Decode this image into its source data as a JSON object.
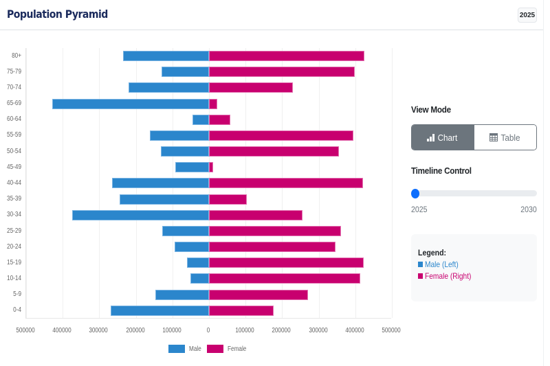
{
  "header": {
    "title": "Population Pyramid",
    "year_badge": "2025"
  },
  "side_panel": {
    "view_mode": {
      "title": "View Mode",
      "chart_label": "Chart",
      "chart_icon": "bar-chart-icon",
      "table_label": "Table",
      "table_icon": "table-icon",
      "active": "Chart"
    },
    "timeline": {
      "title": "Timeline Control",
      "min": "2025",
      "max": "2030",
      "value": 2025
    },
    "legend": {
      "title": "Legend:",
      "items": [
        {
          "label": "Male (Left)",
          "color": "#2b86cc"
        },
        {
          "label": "Female (Right)",
          "color": "#c8006f"
        }
      ]
    }
  },
  "colors": {
    "male": "#2b86cc",
    "female": "#c8006f",
    "title": "#1a2a5c",
    "slider_thumb": "#0d6efd",
    "active_button": "#6c757d"
  },
  "chart_data": {
    "type": "bar",
    "orientation": "horizontal",
    "title": "Population Pyramid",
    "year": 2025,
    "categories": [
      "80+",
      "75-79",
      "70-74",
      "65-69",
      "60-64",
      "55-59",
      "50-54",
      "45-49",
      "40-44",
      "35-39",
      "30-34",
      "25-29",
      "20-24",
      "15-19",
      "10-14",
      "5-9",
      "0-4"
    ],
    "series": [
      {
        "name": "Male",
        "side": "left",
        "color": "#2b86cc",
        "values": [
          235000,
          130000,
          220000,
          429000,
          45000,
          162000,
          132000,
          92000,
          265000,
          244000,
          374000,
          128000,
          94000,
          60000,
          51000,
          147000,
          269000
        ]
      },
      {
        "name": "Female",
        "side": "right",
        "color": "#c8006f",
        "values": [
          425000,
          398000,
          229000,
          23000,
          58000,
          395000,
          355000,
          11000,
          421000,
          103000,
          256000,
          361000,
          346000,
          423000,
          414000,
          271000,
          177000
        ]
      }
    ],
    "xlim": [
      -500000,
      500000
    ],
    "x_ticks": [
      "500000",
      "400000",
      "300000",
      "200000",
      "100000",
      "0",
      "100000",
      "200000",
      "300000",
      "400000",
      "500000"
    ],
    "xlabel": "",
    "ylabel": "",
    "grid": true,
    "legend": [
      "Male",
      "Female"
    ],
    "legend_position": "bottom"
  }
}
